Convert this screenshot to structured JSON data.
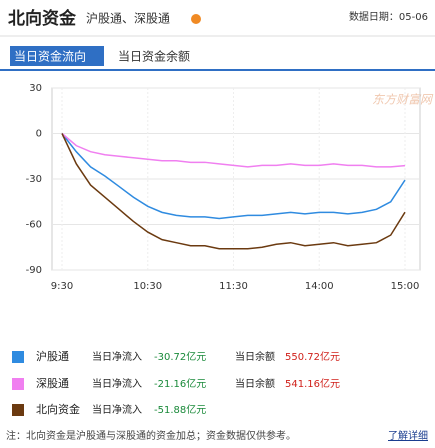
{
  "header": {
    "title": "北向资金",
    "subtitle": "沪股通、深股通",
    "date": "数据日期：05-06"
  },
  "tabs": [
    "当日资金流向",
    "当日资金余额"
  ],
  "watermark": "东方财富网",
  "chart_data": {
    "type": "line",
    "categories": [
      "9:30",
      null,
      null,
      null,
      null,
      null,
      "10:30",
      null,
      null,
      null,
      null,
      null,
      "11:30",
      null,
      null,
      null,
      null,
      null,
      "14:00",
      null,
      null,
      null,
      null,
      null,
      "15:00"
    ],
    "series": [
      {
        "name": "沪股通",
        "color": "#2f8be0",
        "values": [
          0,
          -12,
          -22,
          -28,
          -35,
          -42,
          -48,
          -52,
          -54,
          -55,
          -55,
          -56,
          -55,
          -54,
          -54,
          -53,
          -52,
          -53,
          -52,
          -52,
          -53,
          -52,
          -50,
          -45,
          -30.72
        ]
      },
      {
        "name": "深股通",
        "color": "#f07ff0",
        "values": [
          0,
          -8,
          -12,
          -14,
          -15,
          -16,
          -17,
          -18,
          -18,
          -19,
          -19,
          -20,
          -21,
          -22,
          -21,
          -21,
          -20,
          -21,
          -21,
          -20,
          -21,
          -21,
          -22,
          -22,
          -21.16
        ]
      },
      {
        "name": "北向资金",
        "color": "#6b3a10",
        "values": [
          0,
          -20,
          -34,
          -42,
          -50,
          -58,
          -65,
          -70,
          -72,
          -74,
          -74,
          -76,
          -76,
          -76,
          -75,
          -73,
          -72,
          -74,
          -73,
          -72,
          -74,
          -73,
          -72,
          -67,
          -51.88
        ]
      }
    ],
    "ylim": [
      -90,
      30
    ],
    "yticks": [
      30,
      0,
      -30,
      -60,
      -90
    ],
    "grid": true
  },
  "legend": [
    {
      "net_label": "当日净流入",
      "net": "-30.72亿元",
      "balance_label": "当日余额",
      "balance": "550.72亿元"
    },
    {
      "net_label": "当日净流入",
      "net": "-21.16亿元",
      "balance_label": "当日余额",
      "balance": "541.16亿元"
    },
    {
      "net_label": "当日净流入",
      "net": "-51.88亿元"
    }
  ],
  "note": {
    "text": "注：北向资金是沪股通与深股通的资金加总；资金数据仅供参考。",
    "link": "了解详细"
  }
}
